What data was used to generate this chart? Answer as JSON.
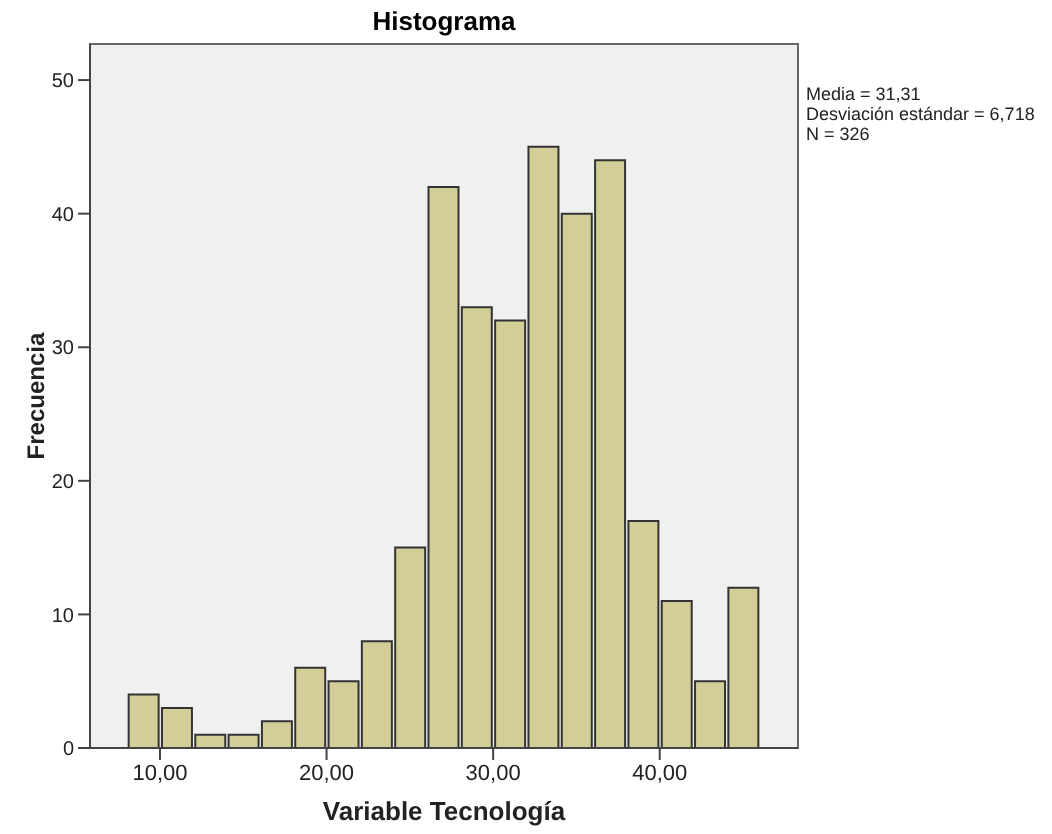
{
  "chart_data": {
    "type": "histogram",
    "title": "Histograma",
    "xlabel": "Variable Tecnología",
    "ylabel": "Frecuencia",
    "annotations": [
      "Media = 31,31",
      "Desviación estándar = 6,718",
      "N = 326"
    ],
    "bins": [
      8,
      10,
      12,
      14,
      16,
      18,
      20,
      22,
      24,
      26,
      28,
      30,
      32,
      34,
      36,
      38,
      40,
      42,
      44,
      46
    ],
    "values": [
      4,
      3,
      1,
      1,
      2,
      6,
      5,
      8,
      15,
      42,
      33,
      32,
      45,
      40,
      44,
      17,
      11,
      5,
      12
    ],
    "color": "#d3ce97",
    "xlim": [
      5.8,
      48.3
    ],
    "xticks": [
      {
        "value": 10,
        "label": "10,00"
      },
      {
        "value": 20,
        "label": "20,00"
      },
      {
        "value": 30,
        "label": "30,00"
      },
      {
        "value": 40,
        "label": "40,00"
      }
    ],
    "ylim": [
      0,
      52.7
    ],
    "yticks": [
      0,
      10,
      20,
      30,
      40,
      50
    ]
  }
}
